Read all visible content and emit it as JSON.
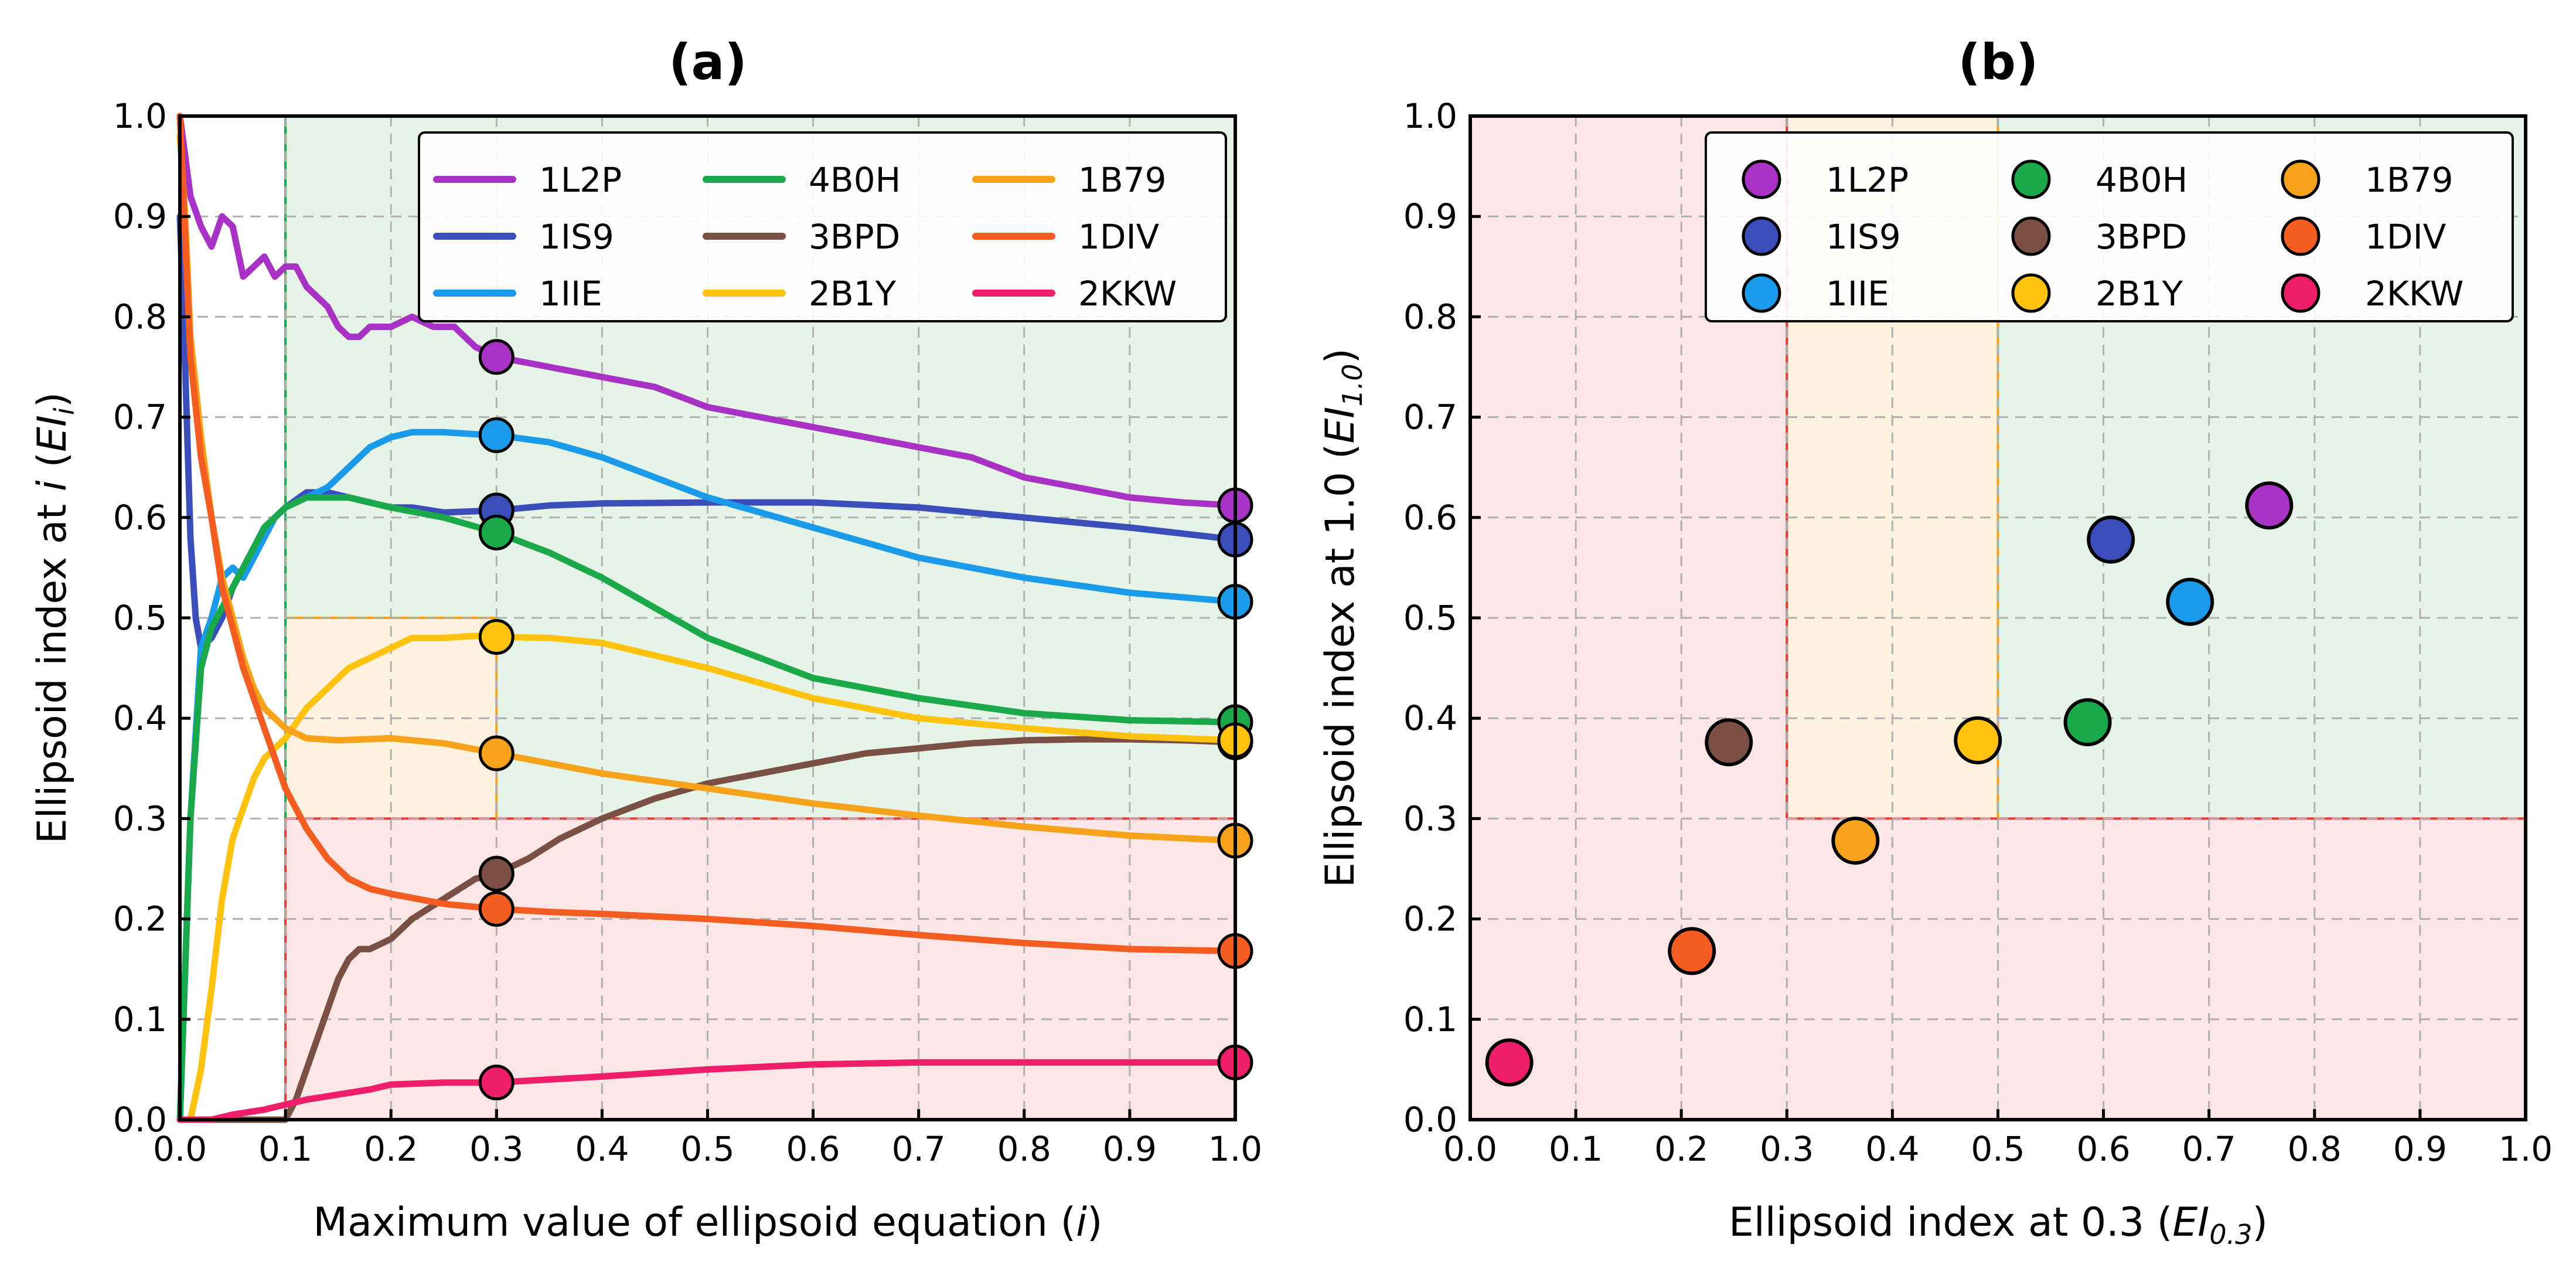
{
  "figure": {
    "colors": {
      "1L2P": "#a832c4",
      "1IS9": "#3a4db8",
      "1IIE": "#1a9ae8",
      "4B0H": "#1aa84a",
      "3BPD": "#7b5044",
      "2B1Y": "#ffc20e",
      "1B79": "#f7a21b",
      "1DIV": "#f45d22",
      "2KKW": "#ef1e6a",
      "zone_green": "#e6f4e7",
      "zone_red": "#fde7e6",
      "zone_orange": "#fff3e0",
      "line_green": "#1aa84a",
      "line_red": "#e53935",
      "line_orange": "#f7a21b"
    }
  },
  "chart_data": [
    {
      "panel": "a",
      "type": "line",
      "title": "(a)",
      "xlabel": "Maximum value of ellipsoid equation (i)",
      "xlabel_parts": {
        "main": "Maximum value of ellipsoid equation (",
        "var": "i",
        "end": ")"
      },
      "ylabel": "Ellipsoid index at i (EIᵢ)",
      "ylabel_parts": {
        "main": "Ellipsoid index at ",
        "var": "i",
        "mid": " (",
        "var2": "EI",
        "sub": "i",
        "end": ")"
      },
      "xlim": [
        0,
        1
      ],
      "ylim": [
        0,
        1
      ],
      "xticks": [
        "0.0",
        "0.1",
        "0.2",
        "0.3",
        "0.4",
        "0.5",
        "0.6",
        "0.7",
        "0.8",
        "0.9",
        "1.0"
      ],
      "yticks": [
        "0.0",
        "0.1",
        "0.2",
        "0.3",
        "0.4",
        "0.5",
        "0.6",
        "0.7",
        "0.8",
        "0.9",
        "1.0"
      ],
      "grid": true,
      "legend_position": "top-right",
      "zones": [
        {
          "type": "green",
          "x": [
            0.1,
            1.0
          ],
          "y": [
            0.3,
            1.0
          ]
        },
        {
          "type": "red",
          "x": [
            0.1,
            1.0
          ],
          "y": [
            0.0,
            0.3
          ]
        },
        {
          "type": "orange",
          "x": [
            0.1,
            0.3
          ],
          "y": [
            0.3,
            0.5
          ]
        }
      ],
      "marker_x": [
        0.3,
        1.0
      ],
      "series": [
        {
          "name": "1L2P",
          "x": [
            0,
            0.01,
            0.02,
            0.03,
            0.04,
            0.05,
            0.06,
            0.07,
            0.08,
            0.09,
            0.1,
            0.11,
            0.12,
            0.13,
            0.14,
            0.15,
            0.16,
            0.17,
            0.18,
            0.2,
            0.22,
            0.24,
            0.26,
            0.28,
            0.3,
            0.35,
            0.4,
            0.45,
            0.5,
            0.55,
            0.6,
            0.65,
            0.7,
            0.75,
            0.8,
            0.85,
            0.9,
            0.95,
            1.0
          ],
          "y": [
            1.0,
            0.92,
            0.89,
            0.87,
            0.9,
            0.89,
            0.84,
            0.85,
            0.86,
            0.84,
            0.85,
            0.85,
            0.83,
            0.82,
            0.81,
            0.79,
            0.78,
            0.78,
            0.79,
            0.79,
            0.8,
            0.79,
            0.79,
            0.77,
            0.76,
            0.75,
            0.74,
            0.73,
            0.71,
            0.7,
            0.69,
            0.68,
            0.67,
            0.66,
            0.64,
            0.63,
            0.62,
            0.615,
            0.612
          ]
        },
        {
          "name": "1IS9",
          "x": [
            0,
            0.005,
            0.01,
            0.015,
            0.02,
            0.03,
            0.04,
            0.05,
            0.06,
            0.07,
            0.08,
            0.09,
            0.1,
            0.12,
            0.14,
            0.16,
            0.18,
            0.2,
            0.22,
            0.25,
            0.3,
            0.35,
            0.4,
            0.5,
            0.6,
            0.7,
            0.8,
            0.9,
            1.0
          ],
          "y": [
            0.9,
            0.75,
            0.58,
            0.5,
            0.47,
            0.48,
            0.5,
            0.53,
            0.55,
            0.57,
            0.59,
            0.6,
            0.61,
            0.625,
            0.625,
            0.62,
            0.615,
            0.61,
            0.61,
            0.605,
            0.607,
            0.612,
            0.614,
            0.615,
            0.615,
            0.61,
            0.6,
            0.59,
            0.578
          ]
        },
        {
          "name": "1IIE",
          "x": [
            0,
            0.01,
            0.02,
            0.03,
            0.04,
            0.05,
            0.06,
            0.07,
            0.08,
            0.09,
            0.1,
            0.12,
            0.14,
            0.16,
            0.18,
            0.2,
            0.22,
            0.25,
            0.28,
            0.3,
            0.35,
            0.4,
            0.45,
            0.5,
            0.6,
            0.7,
            0.8,
            0.9,
            1.0
          ],
          "y": [
            0.0,
            0.3,
            0.47,
            0.5,
            0.54,
            0.55,
            0.54,
            0.56,
            0.58,
            0.6,
            0.61,
            0.62,
            0.63,
            0.65,
            0.67,
            0.68,
            0.685,
            0.685,
            0.683,
            0.682,
            0.675,
            0.66,
            0.64,
            0.62,
            0.59,
            0.56,
            0.54,
            0.525,
            0.516
          ]
        },
        {
          "name": "4B0H",
          "x": [
            0,
            0.01,
            0.02,
            0.03,
            0.04,
            0.05,
            0.06,
            0.07,
            0.08,
            0.09,
            0.1,
            0.12,
            0.14,
            0.16,
            0.18,
            0.2,
            0.25,
            0.3,
            0.35,
            0.4,
            0.45,
            0.5,
            0.6,
            0.7,
            0.8,
            0.9,
            1.0
          ],
          "y": [
            0.0,
            0.3,
            0.45,
            0.49,
            0.51,
            0.53,
            0.55,
            0.57,
            0.59,
            0.6,
            0.61,
            0.62,
            0.62,
            0.62,
            0.615,
            0.61,
            0.6,
            0.585,
            0.565,
            0.54,
            0.51,
            0.48,
            0.44,
            0.42,
            0.405,
            0.398,
            0.396
          ]
        },
        {
          "name": "3BPD",
          "x": [
            0,
            0.1,
            0.11,
            0.12,
            0.13,
            0.14,
            0.15,
            0.16,
            0.17,
            0.18,
            0.2,
            0.22,
            0.25,
            0.28,
            0.3,
            0.33,
            0.36,
            0.4,
            0.45,
            0.5,
            0.55,
            0.6,
            0.65,
            0.7,
            0.75,
            0.8,
            0.85,
            0.9,
            0.95,
            1.0
          ],
          "y": [
            0.0,
            0.0,
            0.02,
            0.05,
            0.08,
            0.11,
            0.14,
            0.16,
            0.17,
            0.17,
            0.18,
            0.2,
            0.22,
            0.24,
            0.245,
            0.26,
            0.28,
            0.3,
            0.32,
            0.335,
            0.345,
            0.355,
            0.365,
            0.37,
            0.375,
            0.378,
            0.379,
            0.379,
            0.378,
            0.376
          ]
        },
        {
          "name": "2B1Y",
          "x": [
            0,
            0.01,
            0.02,
            0.03,
            0.04,
            0.05,
            0.06,
            0.07,
            0.08,
            0.09,
            0.1,
            0.12,
            0.14,
            0.16,
            0.18,
            0.2,
            0.22,
            0.25,
            0.28,
            0.3,
            0.35,
            0.4,
            0.5,
            0.6,
            0.7,
            0.8,
            0.9,
            1.0
          ],
          "y": [
            0.0,
            0.0,
            0.05,
            0.13,
            0.22,
            0.28,
            0.31,
            0.34,
            0.36,
            0.37,
            0.38,
            0.41,
            0.43,
            0.45,
            0.46,
            0.47,
            0.48,
            0.48,
            0.482,
            0.481,
            0.48,
            0.475,
            0.45,
            0.42,
            0.4,
            0.39,
            0.382,
            0.378
          ]
        },
        {
          "name": "1B79",
          "x": [
            0,
            0.005,
            0.01,
            0.02,
            0.03,
            0.04,
            0.05,
            0.06,
            0.07,
            0.08,
            0.09,
            0.1,
            0.12,
            0.15,
            0.2,
            0.25,
            0.3,
            0.35,
            0.4,
            0.5,
            0.6,
            0.7,
            0.8,
            0.9,
            1.0
          ],
          "y": [
            0.98,
            0.9,
            0.78,
            0.68,
            0.6,
            0.54,
            0.5,
            0.46,
            0.43,
            0.41,
            0.4,
            0.39,
            0.38,
            0.378,
            0.38,
            0.375,
            0.365,
            0.355,
            0.345,
            0.33,
            0.315,
            0.303,
            0.292,
            0.283,
            0.278
          ]
        },
        {
          "name": "1DIV",
          "x": [
            0,
            0.01,
            0.02,
            0.03,
            0.04,
            0.05,
            0.06,
            0.07,
            0.08,
            0.09,
            0.1,
            0.12,
            0.14,
            0.16,
            0.18,
            0.2,
            0.25,
            0.3,
            0.35,
            0.4,
            0.5,
            0.6,
            0.7,
            0.8,
            0.9,
            1.0
          ],
          "y": [
            1.0,
            0.76,
            0.66,
            0.6,
            0.53,
            0.49,
            0.45,
            0.42,
            0.39,
            0.36,
            0.33,
            0.29,
            0.26,
            0.24,
            0.23,
            0.225,
            0.215,
            0.21,
            0.207,
            0.205,
            0.2,
            0.193,
            0.184,
            0.176,
            0.17,
            0.168
          ]
        },
        {
          "name": "2KKW",
          "x": [
            0,
            0.03,
            0.05,
            0.08,
            0.1,
            0.12,
            0.15,
            0.18,
            0.2,
            0.25,
            0.3,
            0.35,
            0.4,
            0.5,
            0.6,
            0.7,
            0.8,
            0.9,
            1.0
          ],
          "y": [
            0.0,
            0.0,
            0.005,
            0.01,
            0.015,
            0.02,
            0.025,
            0.03,
            0.035,
            0.037,
            0.037,
            0.04,
            0.043,
            0.05,
            0.055,
            0.057,
            0.057,
            0.057,
            0.057
          ]
        }
      ]
    },
    {
      "panel": "b",
      "type": "scatter",
      "title": "(b)",
      "xlabel": "Ellipsoid index at 0.3 (EI0.3)",
      "xlabel_parts": {
        "main": "Ellipsoid index at 0.3 (",
        "var": "EI",
        "sub": "0.3",
        "end": ")"
      },
      "ylabel": "Ellipsoid index at 1.0 (EI1.0)",
      "ylabel_parts": {
        "main": "Ellipsoid index at 1.0 (",
        "var": "EI",
        "sub": "1.0",
        "end": ")"
      },
      "xlim": [
        0,
        1
      ],
      "ylim": [
        0,
        1
      ],
      "xticks": [
        "0.0",
        "0.1",
        "0.2",
        "0.3",
        "0.4",
        "0.5",
        "0.6",
        "0.7",
        "0.8",
        "0.9",
        "1.0"
      ],
      "yticks": [
        "0.0",
        "0.1",
        "0.2",
        "0.3",
        "0.4",
        "0.5",
        "0.6",
        "0.7",
        "0.8",
        "0.9",
        "1.0"
      ],
      "grid": true,
      "legend_position": "top-right",
      "zones": [
        {
          "type": "green",
          "x": [
            0.5,
            1.0
          ],
          "y": [
            0.3,
            1.0
          ]
        },
        {
          "type": "orange",
          "x": [
            0.3,
            0.5
          ],
          "y": [
            0.3,
            1.0
          ]
        },
        {
          "type": "red",
          "region": "outside",
          "x": [
            0.3,
            1.0
          ],
          "y": [
            0.3,
            1.0
          ]
        }
      ],
      "points": [
        {
          "name": "1L2P",
          "x": 0.757,
          "y": 0.612
        },
        {
          "name": "1IS9",
          "x": 0.607,
          "y": 0.578
        },
        {
          "name": "1IIE",
          "x": 0.682,
          "y": 0.516
        },
        {
          "name": "4B0H",
          "x": 0.585,
          "y": 0.396
        },
        {
          "name": "3BPD",
          "x": 0.245,
          "y": 0.376
        },
        {
          "name": "2B1Y",
          "x": 0.481,
          "y": 0.378
        },
        {
          "name": "1B79",
          "x": 0.365,
          "y": 0.278
        },
        {
          "name": "1DIV",
          "x": 0.21,
          "y": 0.168
        },
        {
          "name": "2KKW",
          "x": 0.037,
          "y": 0.057
        }
      ]
    }
  ]
}
